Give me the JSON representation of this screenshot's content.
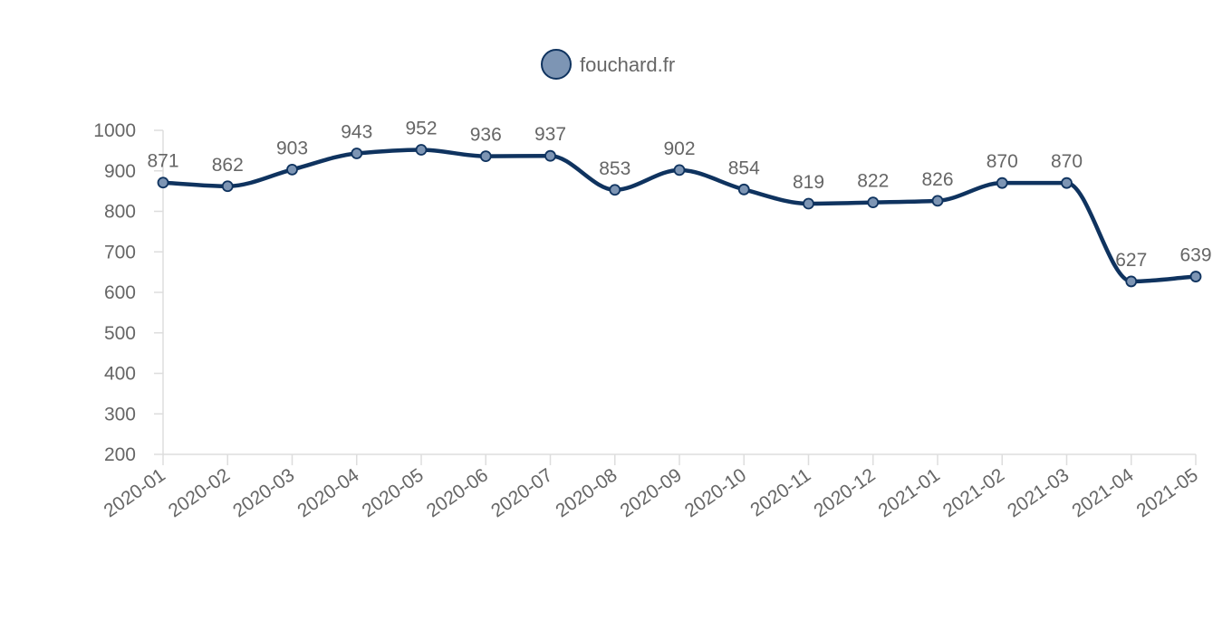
{
  "chart_data": {
    "type": "line",
    "categories": [
      "2020-01",
      "2020-02",
      "2020-03",
      "2020-04",
      "2020-05",
      "2020-06",
      "2020-07",
      "2020-08",
      "2020-09",
      "2020-10",
      "2020-11",
      "2020-12",
      "2021-01",
      "2021-02",
      "2021-03",
      "2021-04",
      "2021-05"
    ],
    "series": [
      {
        "name": "fouchard.fr",
        "values": [
          871,
          862,
          903,
          943,
          952,
          936,
          937,
          853,
          902,
          854,
          819,
          822,
          826,
          870,
          870,
          627,
          639
        ]
      }
    ],
    "ylim": [
      200,
      1000
    ],
    "yticks": [
      200,
      300,
      400,
      500,
      600,
      700,
      800,
      900,
      1000
    ],
    "title": "",
    "xlabel": "",
    "ylabel": "",
    "legend_position": "top-center",
    "grid": false,
    "smooth": true,
    "data_labels": true,
    "colors": {
      "line": "#0f335f",
      "marker_fill": "#7d95b4",
      "marker_stroke": "#0f335f",
      "text": "#666666",
      "axis": "#dddddd"
    }
  }
}
